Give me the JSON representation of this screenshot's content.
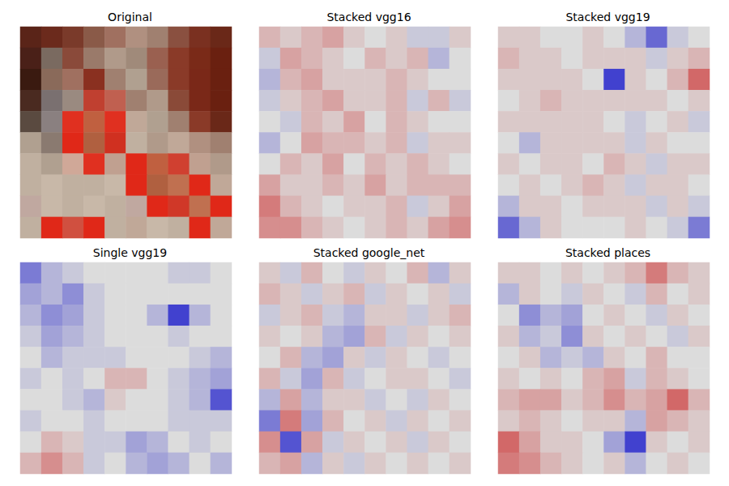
{
  "chart_data": [
    {
      "type": "image",
      "title": "Original",
      "tick_labels": false,
      "cells": [
        [
          "#5a2418",
          "#6b2a1c",
          "#7a3a2a",
          "#8a5a48",
          "#a07060",
          "#b09080",
          "#a08070",
          "#8a5040",
          "#7a3020",
          "#6a2818"
        ],
        [
          "#4a2018",
          "#7a6a60",
          "#8a4a3a",
          "#9a7a6a",
          "#b09a8a",
          "#a08a7a",
          "#9a6050",
          "#8a3a28",
          "#7a2a18",
          "#6a2010"
        ],
        [
          "#3a1a10",
          "#8a6a5a",
          "#a07060",
          "#8a3020",
          "#a08070",
          "#b0a090",
          "#9a6a5a",
          "#8a3a28",
          "#7a2818",
          "#6a2010"
        ],
        [
          "#4a2a20",
          "#7a7070",
          "#9a8a80",
          "#c04030",
          "#c06050",
          "#a08070",
          "#b09a8a",
          "#8a4a38",
          "#7a2818",
          "#6a2010"
        ],
        [
          "#5a4a40",
          "#8a8080",
          "#e03020",
          "#c06040",
          "#e03020",
          "#c0a898",
          "#b0a090",
          "#a08070",
          "#8a3a28",
          "#6a2818"
        ],
        [
          "#b0a090",
          "#8a7a70",
          "#e02818",
          "#b06040",
          "#d03020",
          "#c0b0a0",
          "#b09a8a",
          "#c0a898",
          "#b09080",
          "#a08070"
        ],
        [
          "#c0b0a0",
          "#b0a090",
          "#d0a898",
          "#e03020",
          "#c0a090",
          "#e02818",
          "#c06040",
          "#d04030",
          "#c0a090",
          "#b09a8a"
        ],
        [
          "#c0b0a0",
          "#c8b8a8",
          "#c0b0a0",
          "#c0b0a0",
          "#c8b8a8",
          "#e02818",
          "#b06040",
          "#c07050",
          "#e02818",
          "#c0a898"
        ],
        [
          "#c0a8a0",
          "#c8b8a8",
          "#c0b0a0",
          "#c8b8a8",
          "#c0b0a0",
          "#c0a8a0",
          "#e02818",
          "#d03828",
          "#c07050",
          "#e02818"
        ],
        [
          "#c0b0a0",
          "#e02818",
          "#d05040",
          "#e02818",
          "#c0b0a0",
          "#c0a898",
          "#c8b8a8",
          "#c0b0a0",
          "#e02818",
          "#c0a898"
        ]
      ]
    },
    {
      "type": "heatmap",
      "title": "Stacked vgg16",
      "tick_labels": false,
      "color_range": [
        -1,
        1
      ],
      "cells": [
        [
          0.2,
          0.1,
          0.2,
          0.3,
          0.1,
          0,
          0.1,
          -0.1,
          -0.1,
          0.1
        ],
        [
          -0.1,
          0.3,
          0.2,
          0.1,
          0,
          0.2,
          0.1,
          0.2,
          -0.2,
          0
        ],
        [
          -0.2,
          0.2,
          0.3,
          0.1,
          0.1,
          0.1,
          0.2,
          0.1,
          0,
          0
        ],
        [
          -0.1,
          0.1,
          0.2,
          0.3,
          0.1,
          0.1,
          0.2,
          -0.1,
          0.2,
          -0.1
        ],
        [
          0,
          -0.1,
          0.2,
          0.1,
          0.3,
          0,
          0.2,
          0.1,
          0,
          0
        ],
        [
          -0.2,
          0,
          0.3,
          0.2,
          0.2,
          0.1,
          0.2,
          -0.1,
          0.1,
          0.1
        ],
        [
          0,
          0.2,
          0.1,
          0.3,
          0,
          0.2,
          0.1,
          0.2,
          0.1,
          0
        ],
        [
          0.3,
          0.1,
          0.1,
          0.2,
          0.1,
          0.3,
          0.1,
          0.2,
          0.2,
          0.2
        ],
        [
          0.5,
          0.2,
          0.1,
          0,
          0.1,
          0.1,
          0.2,
          -0.1,
          0.1,
          0.3
        ],
        [
          0.4,
          0.4,
          0.2,
          0.1,
          0,
          0.1,
          0.2,
          0.1,
          0.3,
          0.4
        ]
      ]
    },
    {
      "type": "heatmap",
      "title": "Stacked vgg19",
      "tick_labels": false,
      "color_range": [
        -1,
        1
      ],
      "cells": [
        [
          0.1,
          0.1,
          0,
          0,
          0.1,
          0,
          -0.2,
          -0.6,
          -0.1,
          0
        ],
        [
          0.2,
          0.1,
          0.1,
          0,
          0.1,
          0.1,
          0.1,
          -0.1,
          0.1,
          0.2
        ],
        [
          0.1,
          0.1,
          0.1,
          0.1,
          0,
          -0.8,
          0.1,
          0,
          0.2,
          0.6
        ],
        [
          0,
          0.1,
          0.2,
          0.1,
          0.1,
          0.1,
          0.1,
          0.1,
          0,
          0.1
        ],
        [
          0.1,
          0.1,
          0.1,
          0.1,
          0.1,
          0,
          -0.1,
          0,
          0.1,
          -0.1
        ],
        [
          0,
          -0.2,
          0.1,
          0.1,
          0.1,
          0.1,
          -0.1,
          0.1,
          0,
          0
        ],
        [
          0.1,
          0,
          0.1,
          0.1,
          0,
          0.2,
          0.1,
          -0.1,
          0.1,
          0.1
        ],
        [
          0,
          0.1,
          0,
          0.1,
          0.2,
          0.1,
          -0.1,
          0.1,
          0.1,
          0
        ],
        [
          -0.2,
          0.1,
          0.1,
          0,
          0.1,
          0.1,
          0.1,
          -0.1,
          0.1,
          -0.1
        ],
        [
          -0.6,
          -0.2,
          0.1,
          0,
          0,
          0,
          0.1,
          0,
          -0.1,
          -0.5
        ]
      ]
    },
    {
      "type": "heatmap",
      "title": "Single vgg19",
      "tick_labels": false,
      "color_range": [
        -1,
        1
      ],
      "cells": [
        [
          -0.5,
          -0.2,
          -0.1,
          0,
          0,
          0,
          0,
          -0.1,
          -0.1,
          0
        ],
        [
          -0.3,
          -0.2,
          -0.4,
          -0.1,
          0,
          0,
          0,
          0,
          0,
          0
        ],
        [
          -0.2,
          -0.4,
          -0.3,
          -0.1,
          0,
          0,
          -0.2,
          -0.8,
          -0.2,
          0
        ],
        [
          -0.1,
          -0.3,
          -0.2,
          -0.1,
          0,
          0,
          0,
          -0.1,
          0,
          0
        ],
        [
          0,
          -0.2,
          -0.1,
          -0.1,
          -0.1,
          0,
          0,
          0,
          -0.1,
          -0.2
        ],
        [
          -0.1,
          0,
          -0.1,
          0,
          0.2,
          0.2,
          0,
          -0.1,
          -0.2,
          -0.3
        ],
        [
          0,
          0,
          -0.1,
          -0.2,
          0.1,
          0,
          0,
          -0.1,
          -0.2,
          -0.7
        ],
        [
          -0.1,
          0,
          0,
          -0.1,
          0,
          0,
          0,
          -0.1,
          -0.1,
          -0.1
        ],
        [
          0,
          0.2,
          0.1,
          -0.1,
          -0.1,
          -0.3,
          -0.2,
          0,
          -0.1,
          0
        ],
        [
          0.2,
          0.4,
          0.2,
          -0.1,
          0,
          -0.2,
          -0.3,
          -0.2,
          0,
          -0.2
        ]
      ]
    },
    {
      "type": "heatmap",
      "title": "Stacked google_net",
      "tick_labels": false,
      "color_range": [
        -1,
        1
      ],
      "cells": [
        [
          0.1,
          -0.1,
          0.2,
          0,
          -0.1,
          0.1,
          0,
          0.2,
          -0.2,
          0.1
        ],
        [
          0.2,
          0.1,
          -0.1,
          0.1,
          0.2,
          -0.1,
          0.1,
          0,
          0.1,
          -0.1
        ],
        [
          -0.1,
          0.1,
          0.2,
          -0.1,
          -0.2,
          0.1,
          0.1,
          -0.1,
          0.1,
          0.2
        ],
        [
          0.1,
          0,
          0.1,
          -0.2,
          -0.3,
          0.2,
          -0.1,
          0.1,
          0,
          0.1
        ],
        [
          0,
          0.2,
          -0.2,
          -0.3,
          0.1,
          -0.1,
          0.1,
          0,
          -0.1,
          0
        ],
        [
          0.2,
          -0.1,
          -0.3,
          0.2,
          -0.1,
          0,
          0.1,
          0.1,
          0,
          -0.1
        ],
        [
          -0.2,
          0.3,
          -0.2,
          0.1,
          0.1,
          -0.1,
          0,
          -0.1,
          0.1,
          0
        ],
        [
          -0.5,
          0.5,
          -0.3,
          0.2,
          0,
          0.1,
          -0.1,
          0.1,
          0,
          0.1
        ],
        [
          0.4,
          -0.7,
          0.3,
          -0.1,
          0.1,
          0,
          0.1,
          -0.1,
          0.1,
          0
        ],
        [
          0.2,
          0.3,
          -0.2,
          0.1,
          -0.1,
          0.1,
          0,
          0.1,
          0,
          0.1
        ]
      ]
    },
    {
      "type": "heatmap",
      "title": "Stacked places",
      "tick_labels": false,
      "color_range": [
        -1,
        1
      ],
      "cells": [
        [
          0.1,
          0.1,
          0,
          0.1,
          0,
          0.1,
          0.2,
          0.5,
          0.2,
          0.1
        ],
        [
          -0.2,
          0.1,
          0,
          -0.1,
          0.1,
          0,
          -0.1,
          0.2,
          0,
          0.1
        ],
        [
          0,
          -0.4,
          -0.2,
          -0.3,
          0,
          0.1,
          0,
          -0.1,
          0.1,
          0
        ],
        [
          0.1,
          -0.2,
          -0.1,
          -0.4,
          0.1,
          0,
          0.1,
          0,
          -0.1,
          0.1
        ],
        [
          0,
          0.1,
          -0.2,
          -0.1,
          -0.2,
          0.1,
          0,
          0.2,
          0,
          0
        ],
        [
          0.1,
          0,
          0.1,
          0,
          0.2,
          0.3,
          -0.1,
          0.2,
          0.1,
          0
        ],
        [
          0.2,
          0.3,
          0.3,
          0.1,
          0.2,
          0.4,
          0.2,
          0.3,
          0.6,
          0.2
        ],
        [
          0.1,
          0.2,
          0.1,
          0,
          0.1,
          0.1,
          -0.2,
          0.3,
          0.2,
          0.1
        ],
        [
          0.6,
          0.3,
          0.1,
          0.1,
          0,
          -0.3,
          -0.8,
          0.1,
          0,
          0.1
        ],
        [
          0.5,
          0.4,
          0.2,
          0.1,
          0,
          0.1,
          -0.2,
          0,
          0.1,
          0
        ]
      ]
    }
  ]
}
